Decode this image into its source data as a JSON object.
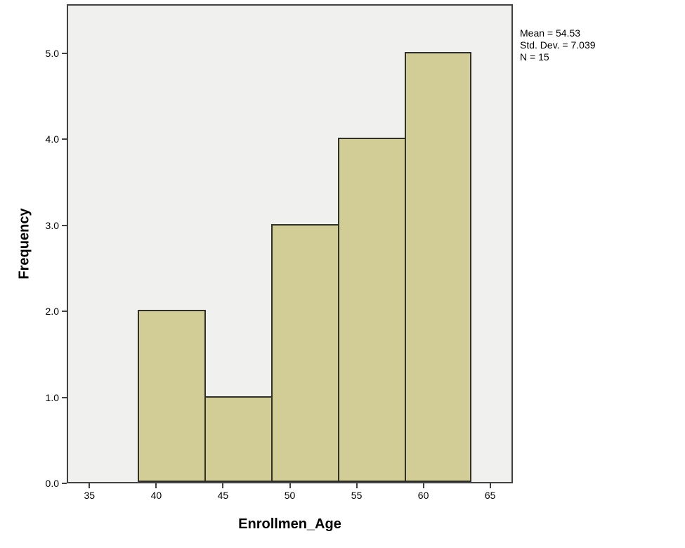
{
  "figure": {
    "colors": {
      "background": "#ffffff",
      "plot_background": "#f0f0ef",
      "frame": "#424242",
      "bar_fill": "#d2cd96",
      "bar_border": "#31312a",
      "text": "#000000"
    }
  },
  "chart_data": {
    "type": "bar",
    "subtype": "histogram",
    "title": "",
    "xlabel": "Enrollmen_Age",
    "ylabel": "Frequency",
    "bins": {
      "start": 38.5,
      "width": 5
    },
    "bin_ranges": [
      "38.5-43.5",
      "43.5-48.5",
      "48.5-53.5",
      "53.5-58.5",
      "58.5-63.5"
    ],
    "values": [
      2,
      1,
      3,
      4,
      5
    ],
    "x_tick_labels": [
      "35",
      "40",
      "45",
      "50",
      "55",
      "60",
      "65"
    ],
    "y_tick_labels": [
      "0.0",
      "1.0",
      "2.0",
      "3.0",
      "4.0",
      "5.0"
    ],
    "xlim": [
      33.3,
      66.7
    ],
    "ylim": [
      0,
      5.57
    ],
    "grid": false,
    "legend_position": "none",
    "annotations": {
      "mean": "Mean = 54.53",
      "std_dev": "Std. Dev. = 7.039",
      "n": "N = 15"
    }
  }
}
